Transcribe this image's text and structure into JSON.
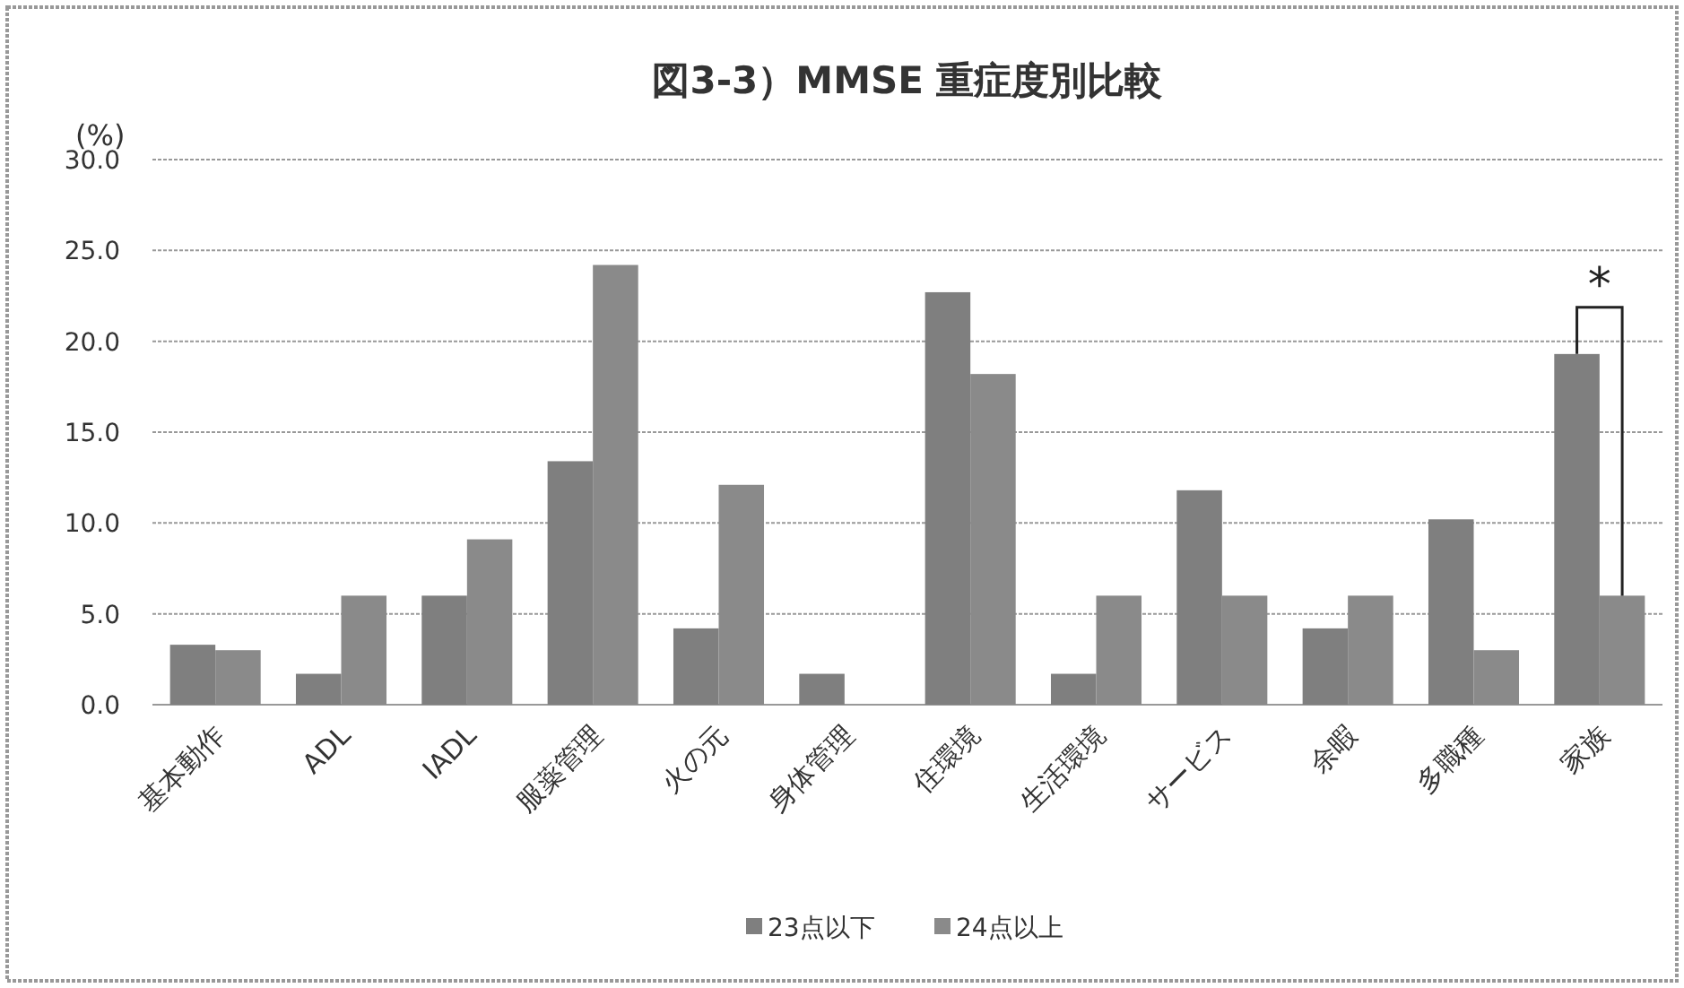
{
  "chart_data": {
    "type": "bar",
    "title": "図3-3）MMSE  重症度別比較",
    "ylabel": "(%)",
    "categories": [
      "基本動作",
      "ADL",
      "IADL",
      "服薬管理",
      "火の元",
      "身体管理",
      "住環境",
      "生活環境",
      "サービス",
      "余暇",
      "多職種",
      "家族"
    ],
    "series": [
      {
        "name": "23点以下",
        "color": "#7f7f7f",
        "values": [
          3.3,
          1.7,
          6.0,
          13.4,
          4.2,
          1.7,
          22.7,
          1.7,
          11.8,
          4.2,
          10.2,
          19.3
        ]
      },
      {
        "name": "24点以上",
        "color": "#8a8a8a",
        "values": [
          3.0,
          6.0,
          9.1,
          24.2,
          12.1,
          0,
          18.2,
          6.0,
          6.0,
          6.0,
          3.0,
          6.0
        ]
      }
    ],
    "ylim": [
      0,
      30
    ],
    "yticks": [
      {
        "value": 0,
        "label": "0.0"
      },
      {
        "value": 5,
        "label": "5.0"
      },
      {
        "value": 10,
        "label": "10.0"
      },
      {
        "value": 15,
        "label": "15.0"
      },
      {
        "value": 20,
        "label": "20.0"
      },
      {
        "value": 25,
        "label": "25.0"
      },
      {
        "value": 30,
        "label": "30.0"
      }
    ],
    "grid": "y",
    "legend": "bottom",
    "annotations": [
      {
        "text": "*",
        "x": "家族",
        "y": 19.3
      }
    ]
  }
}
